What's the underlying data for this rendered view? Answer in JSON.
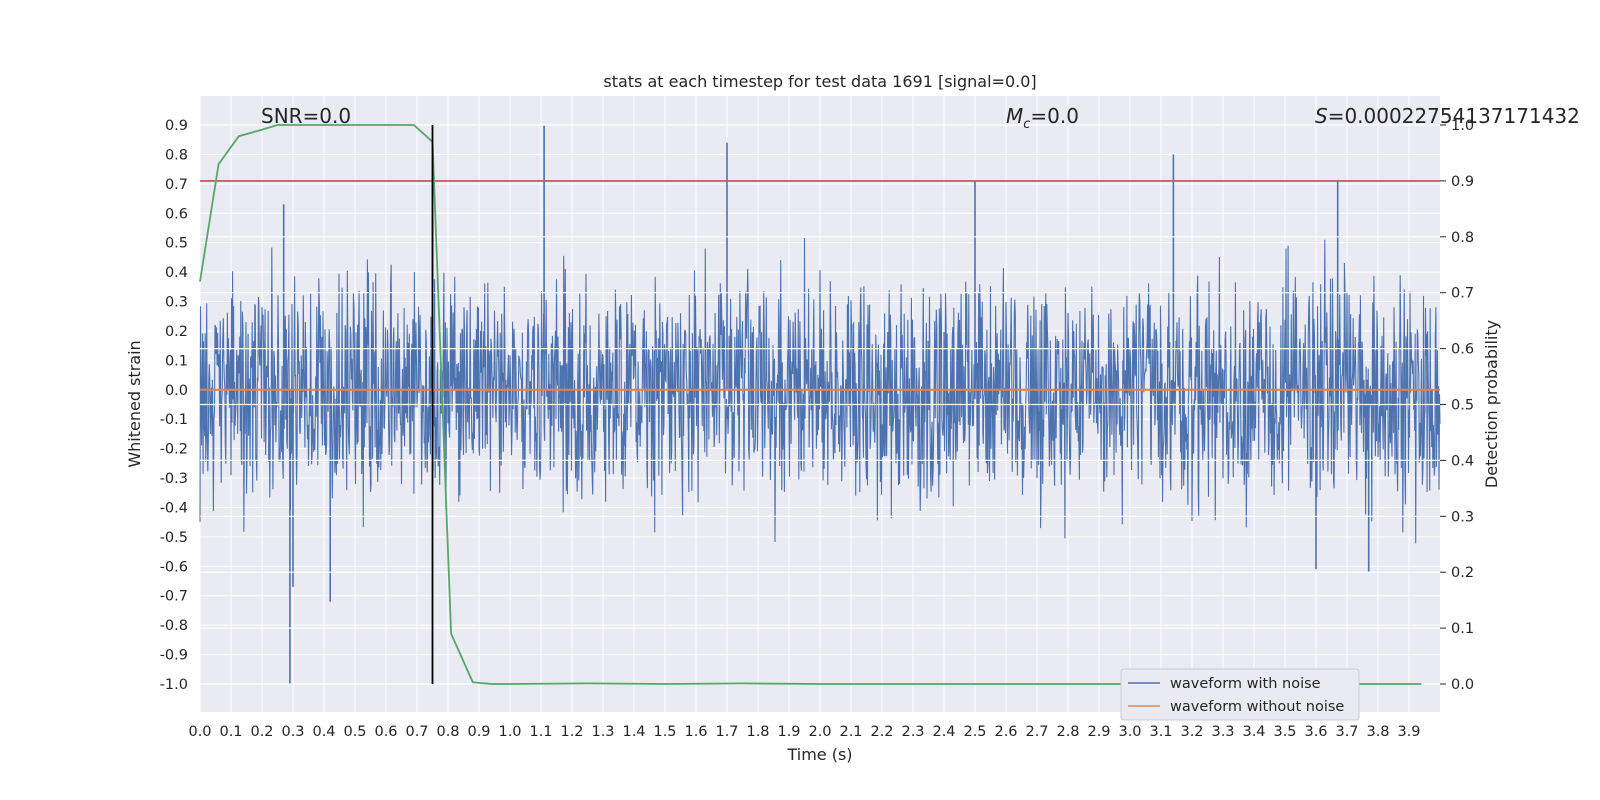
{
  "chart_data": {
    "type": "line",
    "title": "stats at each timestep for test data 1691 [signal=0.0]",
    "xlabel": "Time (s)",
    "ylabel": "Whitened strain",
    "y2label": "Detection probability",
    "xlim": [
      0.0,
      4.0
    ],
    "ylim": [
      -1.09,
      1.0
    ],
    "y2lim": [
      -0.05,
      1.0
    ],
    "xticks": [
      "0.0",
      "0.1",
      "0.2",
      "0.3",
      "0.4",
      "0.5",
      "0.6",
      "0.7",
      "0.8",
      "0.9",
      "1.0",
      "1.1",
      "1.2",
      "1.3",
      "1.4",
      "1.5",
      "1.6",
      "1.7",
      "1.8",
      "1.9",
      "2.0",
      "2.1",
      "2.2",
      "2.3",
      "2.4",
      "2.5",
      "2.6",
      "2.7",
      "2.8",
      "2.9",
      "3.0",
      "3.1",
      "3.2",
      "3.3",
      "3.4",
      "3.5",
      "3.6",
      "3.7",
      "3.8",
      "3.9"
    ],
    "yticks": [
      "0.9",
      "0.8",
      "0.7",
      "0.6",
      "0.5",
      "0.4",
      "0.3",
      "0.2",
      "0.1",
      "0.0",
      "-0.1",
      "-0.2",
      "-0.3",
      "-0.4",
      "-0.5",
      "-0.6",
      "-0.7",
      "-0.8",
      "-0.9",
      "-1.0"
    ],
    "y2ticks": [
      "1.0",
      "0.9",
      "0.8",
      "0.7",
      "0.6",
      "0.5",
      "0.4",
      "0.3",
      "0.2",
      "0.1",
      "0.0"
    ],
    "annotations": {
      "snr": "SNR=0.0",
      "mc_symbol": "M",
      "mc_sub": "c",
      "mc_value": "=0.0",
      "s_symbol": "S",
      "s_value": "=0.00022754137171432"
    },
    "legend": {
      "placement": "lower-right",
      "entries": [
        "waveform with noise",
        "waveform without noise"
      ]
    },
    "grid": true,
    "series": [
      {
        "name": "waveform with noise",
        "color": "#4c72b0",
        "notable_peaks": [
          {
            "x": 0.27,
            "y": 0.63
          },
          {
            "x": 0.29,
            "y": -1.0
          },
          {
            "x": 0.3,
            "y": -0.67
          },
          {
            "x": 0.75,
            "y": 0.72
          },
          {
            "x": 1.11,
            "y": 0.9
          },
          {
            "x": 1.7,
            "y": 0.84
          },
          {
            "x": 3.14,
            "y": 0.8
          },
          {
            "x": 2.5,
            "y": 0.71
          },
          {
            "x": 3.67,
            "y": 0.71
          },
          {
            "x": 0.42,
            "y": -0.72
          },
          {
            "x": 3.6,
            "y": -0.61
          },
          {
            "x": 3.77,
            "y": -0.62
          }
        ],
        "envelope": {
          "typical_min": -0.45,
          "typical_max": 0.45
        }
      },
      {
        "name": "waveform without noise",
        "color": "#dd8452",
        "x": [
          0.0,
          4.0
        ],
        "y": [
          0.0,
          0.0
        ]
      },
      {
        "axis": "right",
        "color": "#55a868",
        "x": [
          0.0,
          0.06,
          0.125,
          0.19,
          0.25,
          0.31,
          0.38,
          0.44,
          0.5,
          0.56,
          0.63,
          0.69,
          0.75,
          0.81,
          0.88,
          0.94,
          1.0,
          1.25,
          1.5,
          1.75,
          2.0,
          2.5,
          3.0,
          3.5,
          3.94
        ],
        "y": [
          0.72,
          0.93,
          0.98,
          0.99,
          1.0,
          1.0,
          1.0,
          1.0,
          1.0,
          1.0,
          1.0,
          1.0,
          0.97,
          0.09,
          0.003,
          0.0,
          0.0,
          0.001,
          0.0,
          0.001,
          0.0,
          0.0,
          0.0,
          0.0,
          0.0
        ]
      },
      {
        "axis": "right",
        "color": "#c44e52",
        "x": [
          0.0,
          4.0
        ],
        "y": [
          0.9,
          0.9
        ]
      },
      {
        "color": "#000000",
        "x": [
          0.75,
          0.75
        ],
        "y": [
          -1.0,
          0.9
        ]
      }
    ],
    "right_axis_gridlines": [
      1.0,
      0.9,
      0.8,
      0.7,
      0.6,
      0.5,
      0.4,
      0.3,
      0.2,
      0.1,
      0.0
    ]
  }
}
